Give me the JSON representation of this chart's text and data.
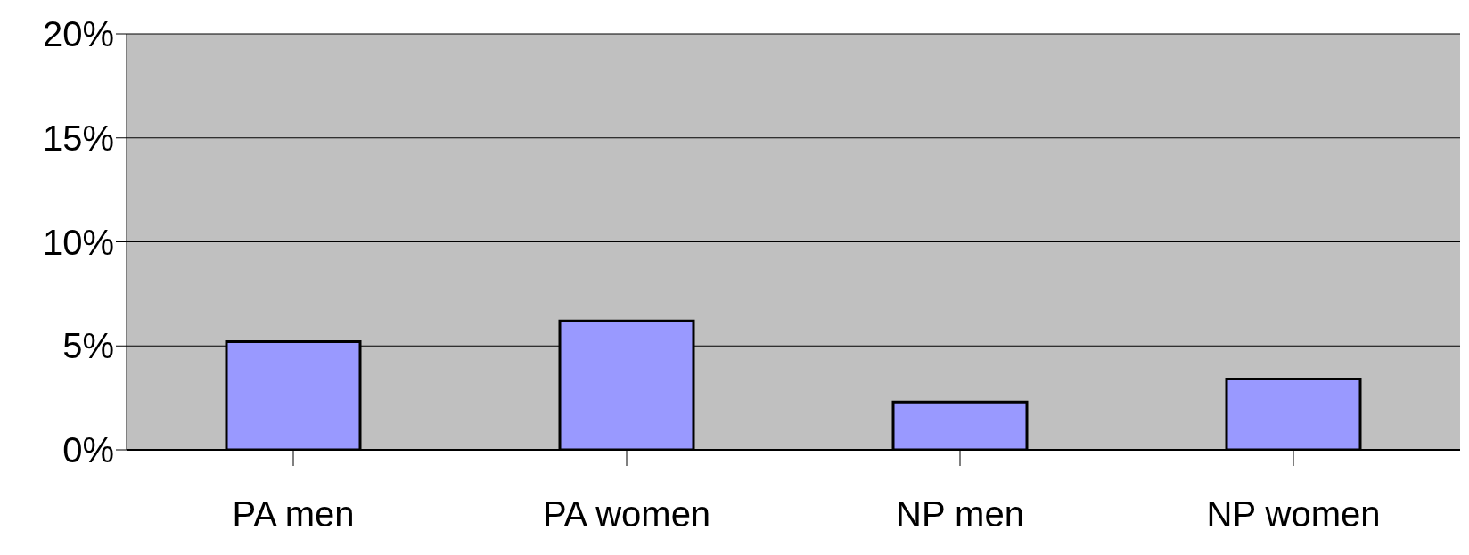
{
  "chart_data": {
    "type": "bar",
    "categories": [
      "PA men",
      "PA women",
      "NP men",
      "NP women"
    ],
    "series": [
      {
        "color": "#9999ff",
        "values": [
          5.2,
          6.2,
          2.3,
          3.4
        ]
      }
    ],
    "ylim": [
      0,
      20
    ],
    "yticks": [
      {
        "value": 0,
        "label": "0%"
      },
      {
        "value": 5,
        "label": "5%"
      },
      {
        "value": 10,
        "label": "10%"
      },
      {
        "value": 15,
        "label": "15%"
      },
      {
        "value": 20,
        "label": "20%"
      }
    ],
    "grid": "y",
    "legend": false
  }
}
